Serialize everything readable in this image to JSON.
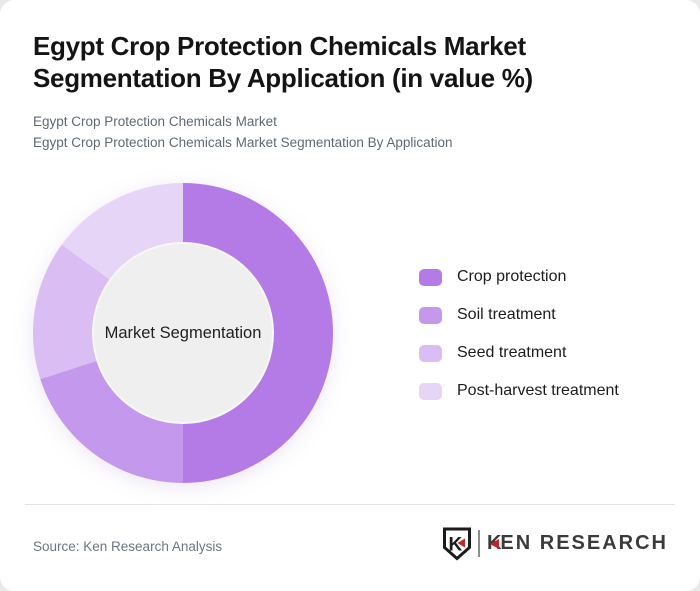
{
  "header": {
    "title_line1": "Egypt Crop Protection Chemicals Market",
    "title_line2": "Segmentation By Application (in value %)",
    "subtitle_line1": "Egypt Crop Protection Chemicals Market",
    "subtitle_line2": "Egypt Crop Protection Chemicals Market Segmentation By Application"
  },
  "chart_data": {
    "type": "pie",
    "subtype": "donut",
    "title": "Egypt Crop Protection Chemicals Market Segmentation By Application (in value %)",
    "center_label": "Market Segmentation",
    "legend_position": "right",
    "unit": "value %",
    "values_labeled_on_chart": false,
    "segments": [
      {
        "label": "Crop protection",
        "value": 50,
        "color": "#b47ae6"
      },
      {
        "label": "Soil treatment",
        "value": 20,
        "color": "#c498ec"
      },
      {
        "label": "Seed treatment",
        "value": 15,
        "color": "#dabdf3"
      },
      {
        "label": "Post-harvest treatment",
        "value": 15,
        "color": "#e7d5f8"
      }
    ]
  },
  "footer": {
    "source": "Source: Ken Research Analysis",
    "logo": {
      "emblem_letter": "K",
      "brand_k": "K",
      "brand_rest": "EN RESEARCH",
      "accent_color": "#c42429",
      "text_color": "#3b3b3b"
    }
  }
}
